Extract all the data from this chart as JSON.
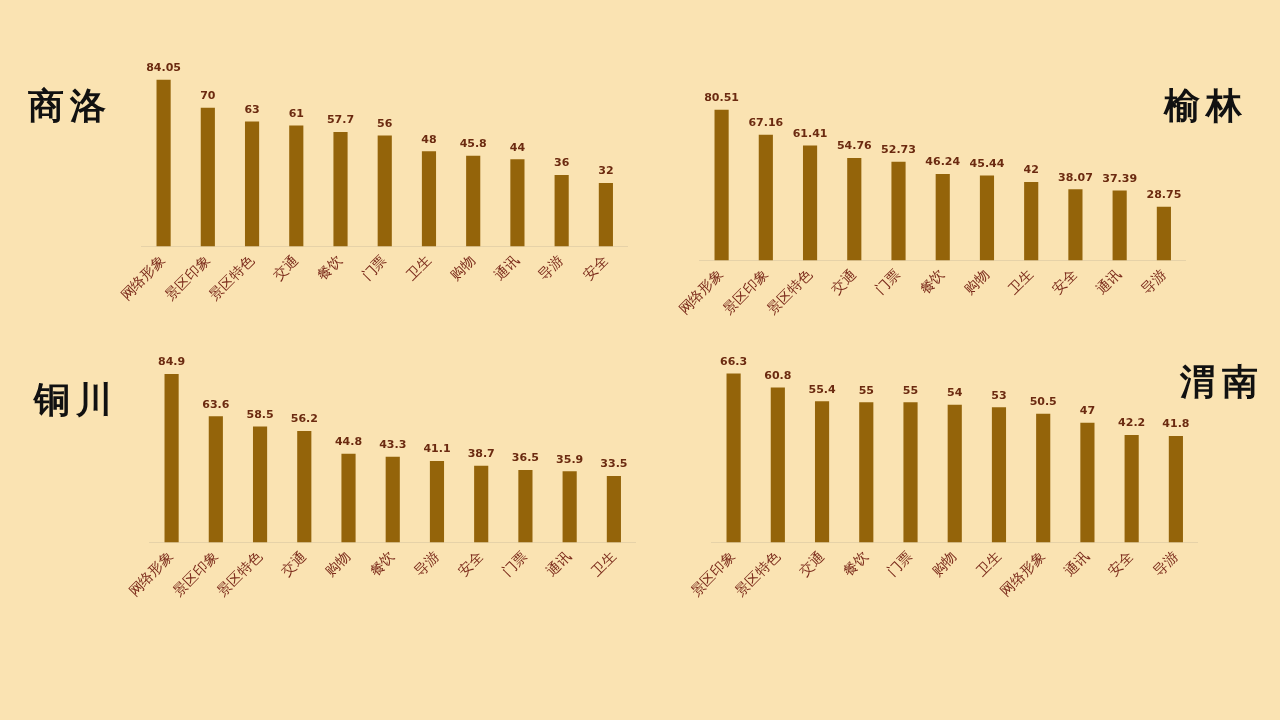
{
  "chart_data": [
    {
      "type": "bar",
      "title": "商洛",
      "categories": [
        "网络形象",
        "景区印象",
        "景区特色",
        "交通",
        "餐饮",
        "门票",
        "卫生",
        "购物",
        "通讯",
        "导游",
        "安全"
      ],
      "values": [
        84.05,
        70,
        63,
        61,
        57.7,
        56,
        48,
        45.8,
        44,
        36,
        32
      ],
      "color": "#94640a",
      "data_labels": true,
      "grid": false,
      "legend": false,
      "tick_labels": "x"
    },
    {
      "type": "bar",
      "title": "榆林",
      "categories": [
        "网络形象",
        "景区印象",
        "景区特色",
        "交通",
        "门票",
        "餐饮",
        "购物",
        "卫生",
        "安全",
        "通讯",
        "导游"
      ],
      "values": [
        80.51,
        67.16,
        61.41,
        54.76,
        52.73,
        46.24,
        45.44,
        42,
        38.07,
        37.39,
        28.75
      ],
      "color": "#94640a",
      "data_labels": true,
      "grid": false,
      "legend": false,
      "tick_labels": "x"
    },
    {
      "type": "bar",
      "title": "铜川",
      "categories": [
        "网络形象",
        "景区印象",
        "景区特色",
        "交通",
        "购物",
        "餐饮",
        "导游",
        "安全",
        "门票",
        "通讯",
        "卫生"
      ],
      "values": [
        84.9,
        63.6,
        58.5,
        56.2,
        44.8,
        43.3,
        41.1,
        38.7,
        36.5,
        35.9,
        33.5
      ],
      "color": "#94640a",
      "data_labels": true,
      "grid": false,
      "legend": false,
      "tick_labels": "x"
    },
    {
      "type": "bar",
      "title": "渭南",
      "categories": [
        "景区印象",
        "景区特色",
        "交通",
        "餐饮",
        "门票",
        "购物",
        "卫生",
        "网络形象",
        "通讯",
        "安全",
        "导游"
      ],
      "values": [
        66.3,
        60.8,
        55.4,
        55,
        55,
        54,
        53,
        50.5,
        47,
        42.2,
        41.8
      ],
      "color": "#94640a",
      "data_labels": true,
      "grid": false,
      "legend": false,
      "tick_labels": "x"
    }
  ]
}
